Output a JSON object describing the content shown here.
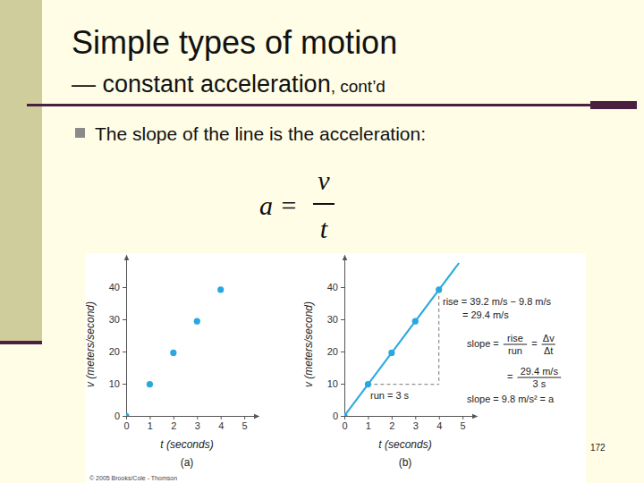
{
  "slide": {
    "title": "Simple types of motion",
    "subtitle": "— constant acceleration",
    "subtitle_suffix": ", cont’d",
    "bullet": "The slope of the line is the acceleration:",
    "formula": {
      "left": "a =",
      "numerator": "v",
      "denominator": "t"
    },
    "copyright": "© 2005 Brooks/Cole - Thomson",
    "page_number": "172"
  },
  "chart_data": [
    {
      "type": "scatter",
      "caption": "(a)",
      "x_label": "t (seconds)",
      "y_label": "v (meters/second)",
      "x": [
        0,
        1,
        2,
        3,
        4
      ],
      "values": [
        0,
        9.8,
        19.6,
        29.4,
        39.2
      ],
      "color": "#29a8df",
      "marker": "circle",
      "xlim": [
        0,
        5.6
      ],
      "ylim": [
        0,
        50
      ],
      "xticks": [
        0,
        1,
        2,
        3,
        4,
        5
      ],
      "yticks": [
        0,
        10,
        20,
        30,
        40
      ],
      "grid": false
    },
    {
      "type": "line",
      "caption": "(b)",
      "x_label": "t (seconds)",
      "y_label": "v (meters/second)",
      "series": [
        {
          "type": "scatter",
          "marker": "circle",
          "color": "#29a8df",
          "x": [
            0,
            1,
            2,
            3,
            4
          ],
          "values": [
            0,
            9.8,
            19.6,
            29.4,
            39.2
          ]
        },
        {
          "type": "line",
          "line_style": "solid",
          "color": "#29a8df",
          "x": [
            0,
            4.85
          ],
          "values": [
            0,
            47.5
          ]
        }
      ],
      "xlim": [
        0,
        5.6
      ],
      "ylim": [
        0,
        50
      ],
      "xticks": [
        0,
        1,
        2,
        3,
        4,
        5
      ],
      "yticks": [
        0,
        10,
        20,
        30,
        40
      ],
      "grid": false,
      "annotations": [
        {
          "parts": [
            "rise = 39.2 m/s − 9.8 m/s"
          ]
        },
        {
          "parts": [
            "= 29.4 m/s"
          ]
        },
        {
          "parts": [
            "slope =",
            [
              "rise",
              "run"
            ],
            "=",
            [
              "Δv",
              "Δt"
            ]
          ]
        },
        {
          "parts": [
            "=",
            [
              "29.4 m/s",
              "3 s"
            ]
          ]
        },
        {
          "parts": [
            "slope = 9.8 m/s² = a"
          ]
        },
        {
          "parts": [
            "run = 3 s"
          ]
        }
      ]
    }
  ]
}
